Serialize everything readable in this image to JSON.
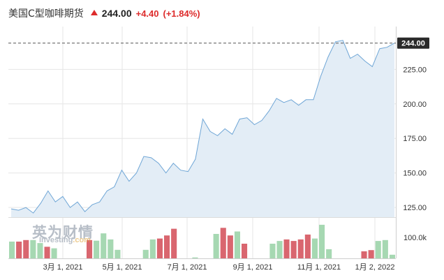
{
  "header": {
    "title": "美国C型咖啡期货",
    "price": "244.00",
    "change": "+4.40",
    "change_pct": "(+1.84%)",
    "up_color": "#dd2b2b"
  },
  "price_badge": "244.00",
  "watermark": {
    "zh": "英为财情",
    "en_prefix": "Investing",
    "en_suffix": ".com"
  },
  "colors": {
    "line": "#6fa6d6",
    "area": "#e3edf6",
    "vol_up": "#a6d8b2",
    "vol_down": "#d9666f",
    "grid": "#e6e6e6",
    "last_price_line": "#555555",
    "badge_bg": "#2b2b2b"
  },
  "chart_data": {
    "type": "line",
    "x_ticks": [
      "3月 1, 2021",
      "5月 1, 2021",
      "7月 1, 2021",
      "9月 1, 2021",
      "11月 1, 2021",
      "1月 2, 2022"
    ],
    "y_ticks": [
      "125.00",
      "150.00",
      "175.00",
      "200.00",
      "225.00"
    ],
    "volume_ticks": [
      "100.0k"
    ],
    "ylim": [
      118,
      256
    ],
    "last_price": 244.0,
    "series": [
      {
        "values": [
          124,
          123,
          125,
          121,
          128,
          137,
          129,
          133,
          125,
          129,
          122,
          127,
          129,
          137,
          140,
          152,
          144,
          150,
          162,
          161,
          157,
          150,
          157,
          152,
          151,
          160,
          189,
          180,
          177,
          182,
          178,
          189,
          190,
          185,
          188,
          195,
          204,
          201,
          203,
          199,
          203,
          203,
          220,
          234,
          245,
          246,
          233,
          236,
          231,
          227,
          240,
          241,
          244
        ]
      }
    ],
    "volume": {
      "ylim": [
        0,
        135
      ],
      "values": [
        55,
        55,
        60,
        60,
        50,
        38,
        33,
        0,
        0,
        0,
        0,
        60,
        58,
        82,
        62,
        28,
        0,
        0,
        0,
        28,
        62,
        65,
        75,
        97,
        0,
        0,
        3,
        0,
        0,
        80,
        100,
        75,
        88,
        48,
        0,
        0,
        0,
        48,
        57,
        62,
        57,
        62,
        78,
        65,
        110,
        30,
        0,
        0,
        0,
        0,
        23,
        27,
        57,
        60,
        12
      ],
      "direction": [
        "up",
        "down",
        "down",
        "up",
        "up",
        "down",
        "up",
        "up",
        "up",
        "up",
        "up",
        "down",
        "up",
        "up",
        "up",
        "up",
        "up",
        "up",
        "up",
        "up",
        "up",
        "down",
        "down",
        "down",
        "up",
        "up",
        "up",
        "up",
        "up",
        "up",
        "down",
        "down",
        "up",
        "down",
        "up",
        "up",
        "up",
        "up",
        "up",
        "down",
        "down",
        "down",
        "down",
        "up",
        "up",
        "up",
        "up",
        "up",
        "up",
        "up",
        "down",
        "down",
        "up",
        "up",
        "up"
      ]
    }
  }
}
